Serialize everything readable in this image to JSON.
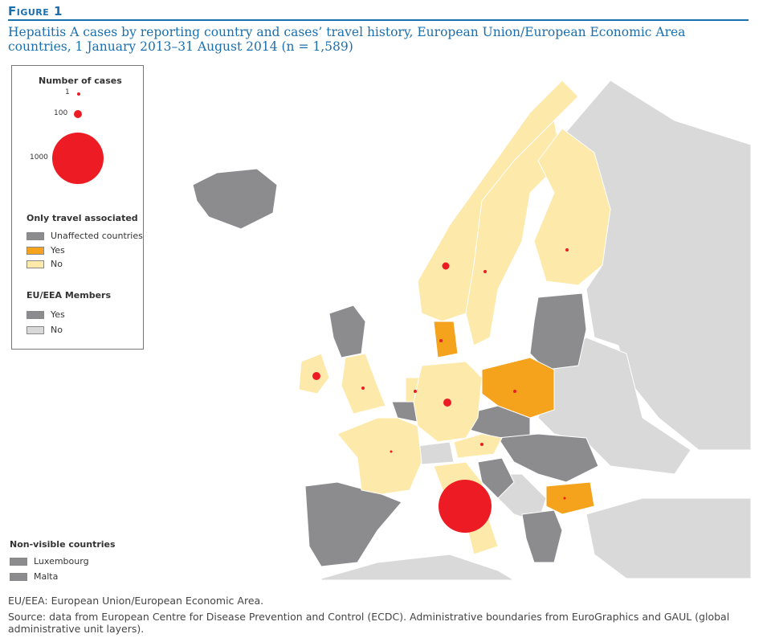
{
  "figure_label": "Figure 1",
  "title": "Hepatitis A cases by reporting country and cases’ travel history, European Union/European Economic Area countries, 1 January 2013–31 August 2014 (n = 1,589)",
  "legend": {
    "cases_title": "Number of cases",
    "cases": [
      {
        "label": "1",
        "value": 1
      },
      {
        "label": "100",
        "value": 100
      },
      {
        "label": "1000",
        "value": 1000
      }
    ],
    "travel_title": "Only travel associated",
    "travel": [
      {
        "label": "Unaffected countries",
        "color": "#8c8c8f"
      },
      {
        "label": "Yes",
        "color": "#f5a21c"
      },
      {
        "label": "No",
        "color": "#fde9a9"
      }
    ],
    "eu_title": "EU/EEA Members",
    "eu": [
      {
        "label": "Yes",
        "color": "#8c8c8f"
      },
      {
        "label": "No",
        "color": "#d9d9d9"
      }
    ]
  },
  "non_visible": {
    "title": "Non-visible countries",
    "items": [
      {
        "label": "Luxembourg",
        "color": "#8c8c8f"
      },
      {
        "label": "Malta",
        "color": "#8c8c8f"
      }
    ]
  },
  "colors": {
    "bubble": "#ed1c24",
    "yes": "#f5a21c",
    "no": "#fde9a9",
    "unaffected": "#8c8c8f",
    "non_eu": "#d9d9d9"
  },
  "footnote": "EU/EEA: European Union/European Economic Area.",
  "source": "Source: data from European Centre for Disease Prevention and Control (ECDC). Administrative boundaries from EuroGraphics and GAUL (global administrative unit layers)."
}
